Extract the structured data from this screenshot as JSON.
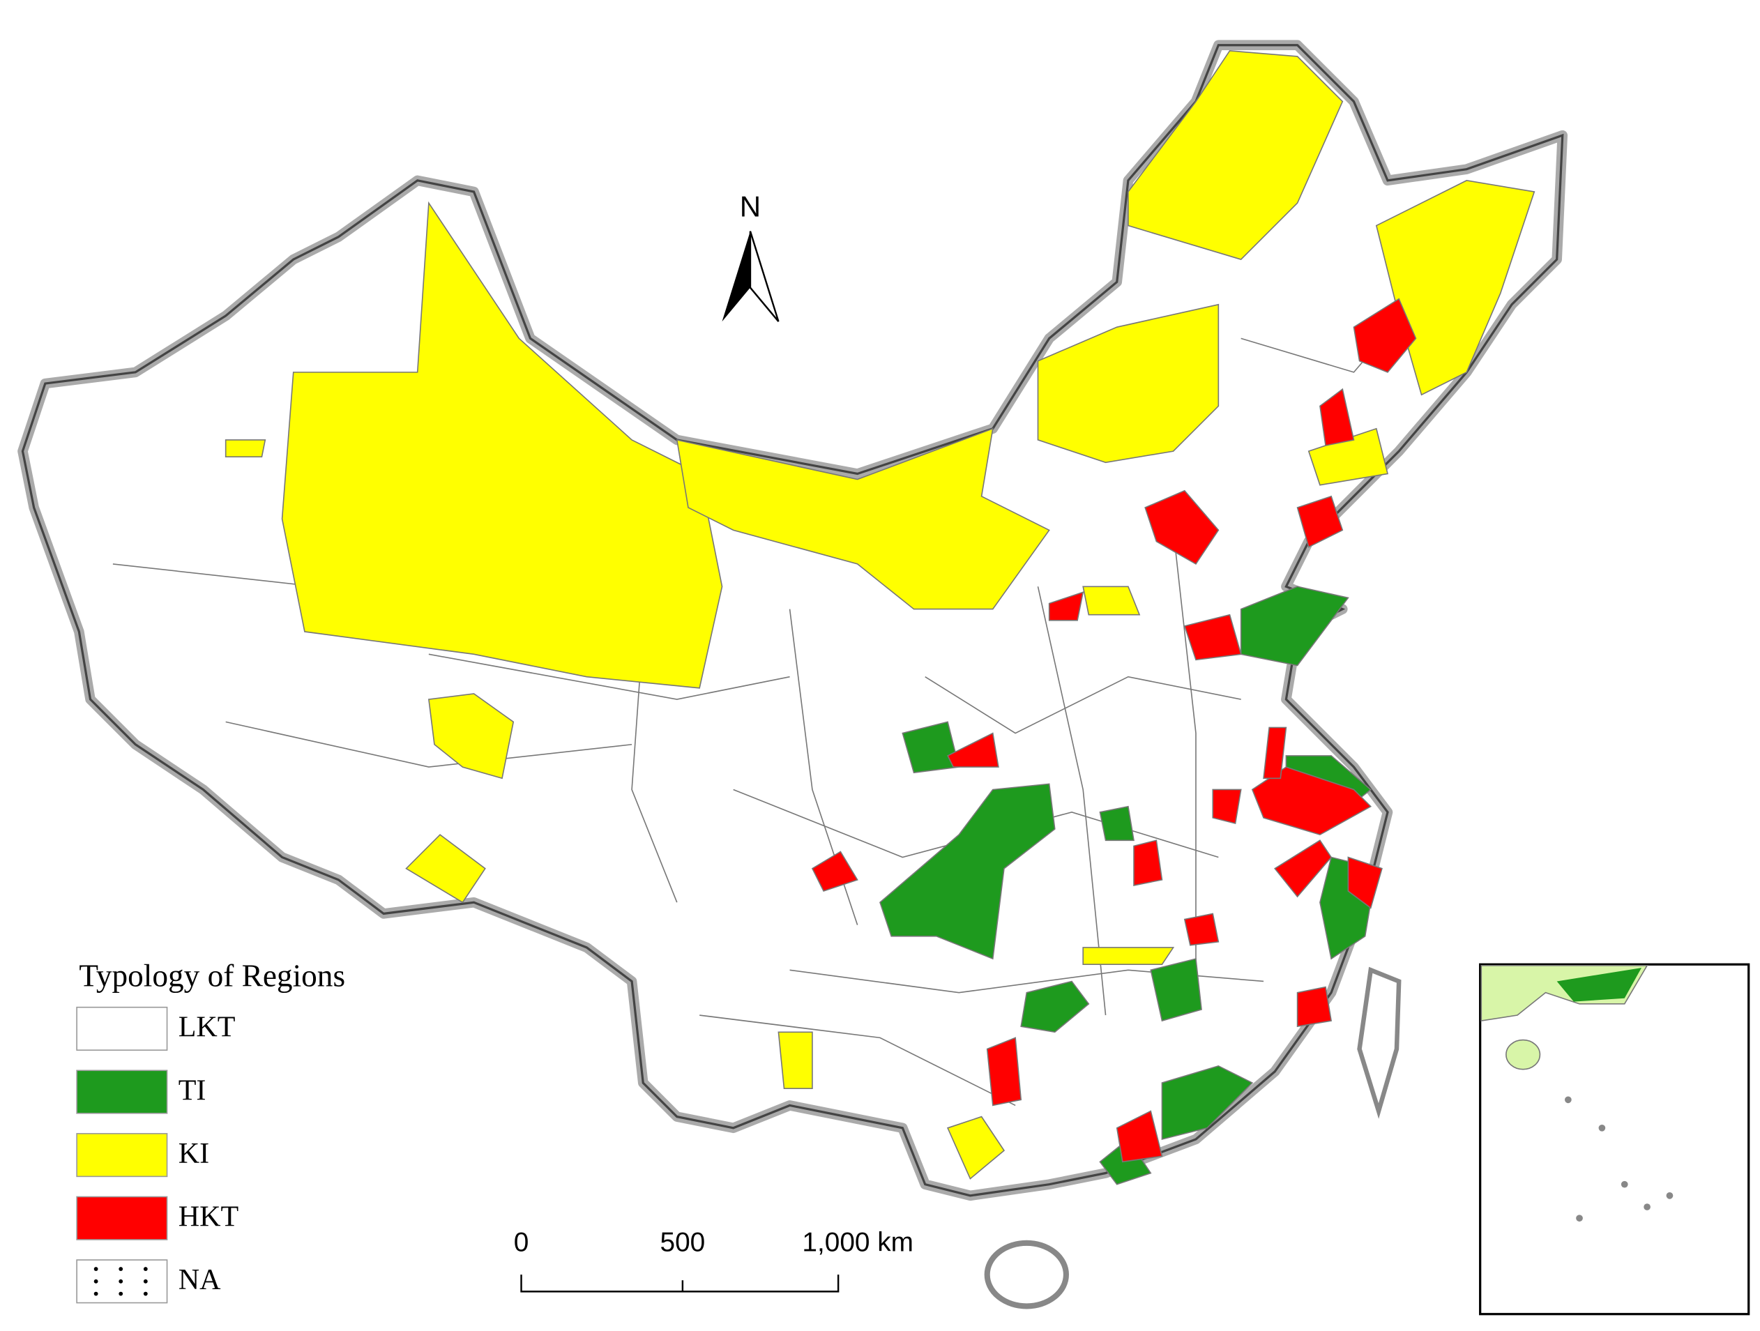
{
  "north_arrow": "N",
  "scale_bar": {
    "labels": [
      "0",
      "500",
      "1,000 km"
    ]
  },
  "legend": {
    "title": "Typology of Regions",
    "items": [
      {
        "label": "LKT",
        "color": "#ffffff"
      },
      {
        "label": "TI",
        "color": "#1e9a1e"
      },
      {
        "label": "KI",
        "color": "#ffff00"
      },
      {
        "label": "HKT",
        "color": "#ff0000"
      },
      {
        "label": "NA",
        "color": "#ffffff"
      }
    ]
  }
}
